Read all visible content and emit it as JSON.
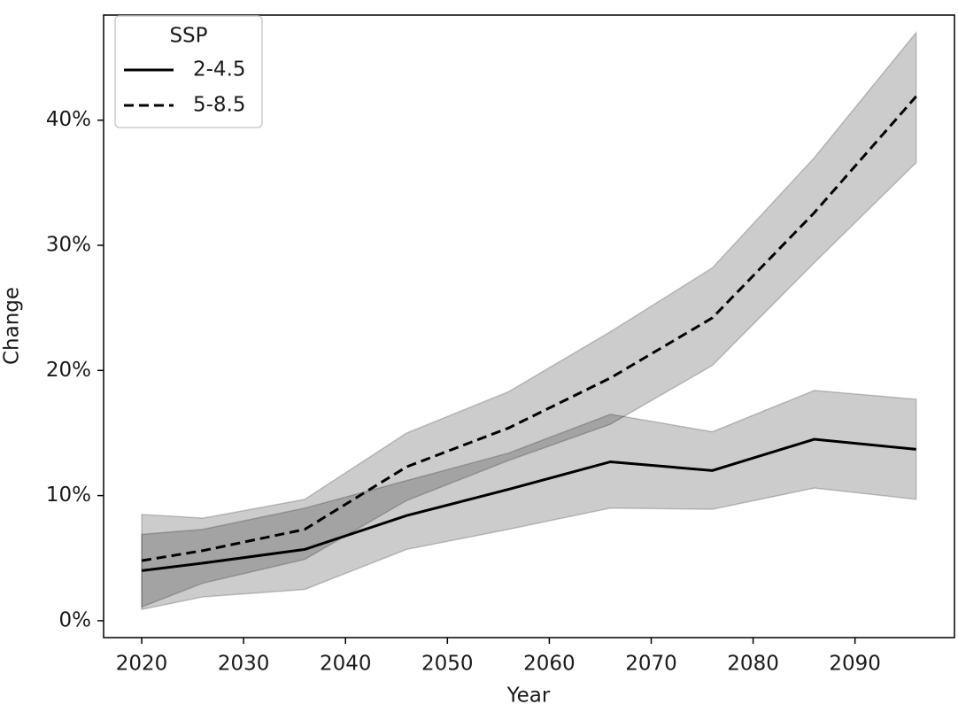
{
  "chart_data": {
    "type": "line",
    "x_label": "Year",
    "y_label": "Change",
    "x": [
      2020,
      2026,
      2036,
      2046,
      2056,
      2066,
      2076,
      2086,
      2096
    ],
    "series": [
      {
        "name": "2-4.5",
        "color": "#000000",
        "dash": false,
        "values": [
          4.0,
          4.6,
          5.7,
          8.4,
          10.5,
          12.7,
          12.0,
          14.5,
          13.7
        ],
        "lower": [
          0.9,
          1.9,
          2.5,
          5.7,
          7.3,
          9.0,
          8.9,
          10.6,
          9.7
        ],
        "upper": [
          6.9,
          7.3,
          9.0,
          11.2,
          13.4,
          16.5,
          15.1,
          18.4,
          17.7
        ]
      },
      {
        "name": "5-8.5",
        "color": "#000000",
        "dash": true,
        "values": [
          4.8,
          5.6,
          7.3,
          12.3,
          15.4,
          19.4,
          24.2,
          32.6,
          41.9
        ],
        "lower": [
          1.1,
          3.0,
          4.9,
          9.6,
          12.8,
          15.7,
          20.4,
          28.6,
          36.6
        ],
        "upper": [
          8.5,
          8.2,
          9.7,
          15.0,
          18.3,
          23.1,
          28.2,
          37.0,
          47.0
        ]
      }
    ],
    "legend_title": "SSP",
    "legend_position": "upper left",
    "xlim": [
      2016.26,
      2099.76
    ],
    "ylim": [
      -1.35,
      48.4
    ],
    "xticks": [
      2020,
      2030,
      2040,
      2050,
      2060,
      2070,
      2080,
      2090
    ],
    "yticks": [
      {
        "value": 0,
        "label": "0%"
      },
      {
        "value": 10,
        "label": "10%"
      },
      {
        "value": 20,
        "label": "20%"
      },
      {
        "value": 30,
        "label": "30%"
      },
      {
        "value": 40,
        "label": "40%"
      }
    ],
    "grid": false
  }
}
